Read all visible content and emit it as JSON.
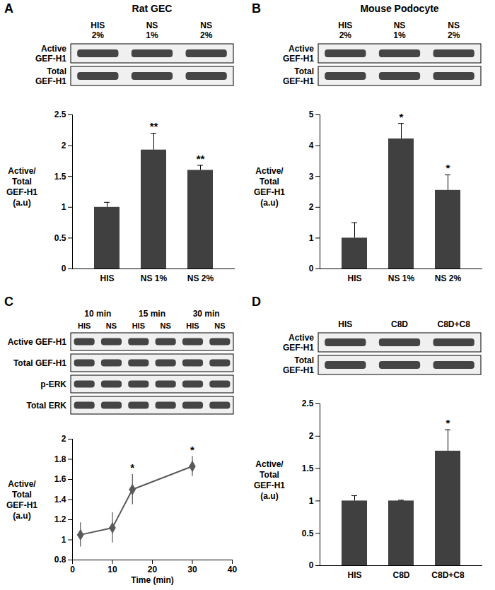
{
  "chart_data": [
    {
      "type": "bar",
      "panel": "A",
      "title": "Rat GEC",
      "blot_lanes": [
        "HIS 2%",
        "NS 1%",
        "NS 2%"
      ],
      "blot_rows": [
        "Active GEF-H1",
        "Total GEF-H1"
      ],
      "categories": [
        "HIS",
        "NS 1%",
        "NS 2%"
      ],
      "values": [
        1,
        1.93,
        1.6
      ],
      "errors": [
        0.08,
        0.27,
        0.08
      ],
      "significance": [
        null,
        "**",
        "**"
      ],
      "y_label": "Active/ Total GEF-H1 (a.u)",
      "ylim": [
        0,
        2.5
      ],
      "yticks": [
        0,
        0.5,
        1,
        1.5,
        2,
        2.5
      ],
      "color": "#404040"
    },
    {
      "type": "bar",
      "panel": "B",
      "title": "Mouse Podocyte",
      "blot_lanes": [
        "HIS 2%",
        "NS 1%",
        "NS 2%"
      ],
      "blot_rows": [
        "Active GEF-H1",
        "Total GEF-H1"
      ],
      "categories": [
        "HIS",
        "NS 1%",
        "NS 2%"
      ],
      "values": [
        1,
        4.22,
        2.55
      ],
      "errors": [
        0.5,
        0.5,
        0.5
      ],
      "significance": [
        null,
        "*",
        "*"
      ],
      "y_label": "Active/ Total GEF-H1 (a.u)",
      "ylim": [
        0,
        5
      ],
      "yticks": [
        0,
        1,
        2,
        3,
        4,
        5
      ],
      "color": "#404040"
    },
    {
      "type": "line",
      "panel": "C",
      "blot_groups": [
        "10 min",
        "15 min",
        "30 min"
      ],
      "blot_lanes": [
        "HIS",
        "NS",
        "HIS",
        "NS",
        "HIS",
        "NS"
      ],
      "blot_rows": [
        "Active GEF-H1",
        "Total GEF-H1",
        "p-ERK",
        "Total ERK"
      ],
      "x": [
        2,
        10,
        15,
        30
      ],
      "values": [
        1.05,
        1.12,
        1.5,
        1.73
      ],
      "errors": [
        0.12,
        0.15,
        0.15,
        0.1
      ],
      "x_errors": [
        0.8,
        0.8,
        0.8,
        0.8
      ],
      "significance": [
        null,
        null,
        "*",
        "*"
      ],
      "x_label": "Time (min)",
      "y_label": "Active/ Total GEF-H1 (a.u)",
      "xlim": [
        0,
        40
      ],
      "xticks": [
        0,
        10,
        20,
        30,
        40
      ],
      "ylim": [
        0.8,
        2
      ],
      "yticks": [
        0.8,
        1,
        1.2,
        1.4,
        1.6,
        1.8,
        2
      ],
      "color": "#595959",
      "marker": "diamond"
    },
    {
      "type": "bar",
      "panel": "D",
      "blot_lanes": [
        "HIS",
        "C8D",
        "C8D+C8"
      ],
      "blot_rows": [
        "Active GEF-H1",
        "Total GEF-H1"
      ],
      "categories": [
        "HIS",
        "C8D",
        "C8D+C8"
      ],
      "values": [
        1,
        1,
        1.77
      ],
      "errors": [
        0.08,
        0.01,
        0.33
      ],
      "significance": [
        null,
        null,
        "*"
      ],
      "y_label": "Active/ Total GEF-H1 (a.u)",
      "ylim": [
        0,
        2.5
      ],
      "yticks": [
        0,
        0.5,
        1,
        1.5,
        2,
        2.5
      ],
      "color": "#404040"
    }
  ]
}
